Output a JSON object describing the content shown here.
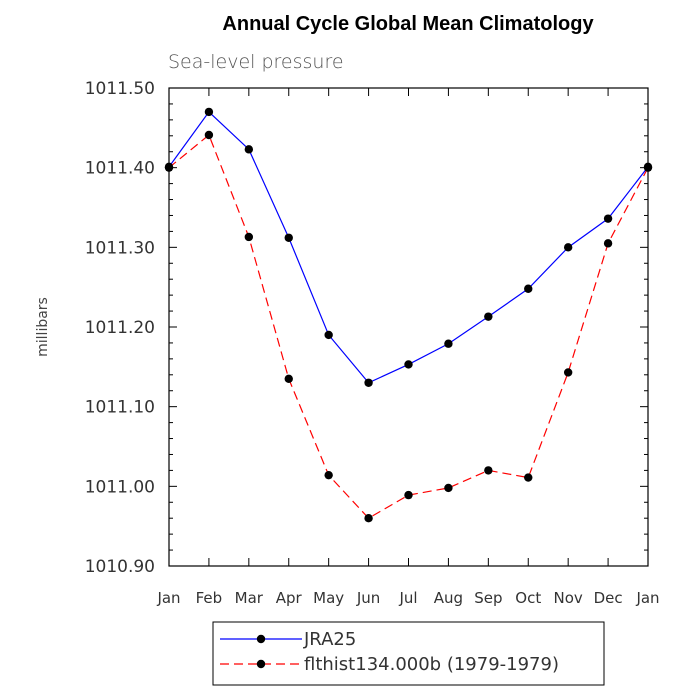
{
  "chart_data": {
    "type": "line",
    "title": "Annual Cycle Global Mean Climatology",
    "subtitle": "Sea-level pressure",
    "xlabel": "",
    "ylabel": "millibars",
    "ylim": [
      1010.9,
      1011.5
    ],
    "yticks": [
      "1010.90",
      "1011.00",
      "1011.10",
      "1011.20",
      "1011.30",
      "1011.40",
      "1011.50"
    ],
    "categories": [
      "Jan",
      "Feb",
      "Mar",
      "Apr",
      "May",
      "Jun",
      "Jul",
      "Aug",
      "Sep",
      "Oct",
      "Nov",
      "Dec",
      "Jan"
    ],
    "legend_position": "bottom",
    "grid": false,
    "series": [
      {
        "name": "JRA25",
        "color": "#0000ff",
        "dash": "solid",
        "values": [
          1011.401,
          1011.47,
          1011.423,
          1011.312,
          1011.19,
          1011.13,
          1011.153,
          1011.179,
          1011.213,
          1011.248,
          1011.3,
          1011.336,
          1011.401
        ]
      },
      {
        "name": "flthist134.000b (1979-1979)",
        "color": "#ff0000",
        "dash": "dashed",
        "values": [
          1011.4,
          1011.441,
          1011.313,
          1011.135,
          1011.014,
          1010.96,
          1010.989,
          1010.998,
          1011.02,
          1011.011,
          1011.143,
          1011.305,
          1011.4
        ]
      }
    ]
  }
}
